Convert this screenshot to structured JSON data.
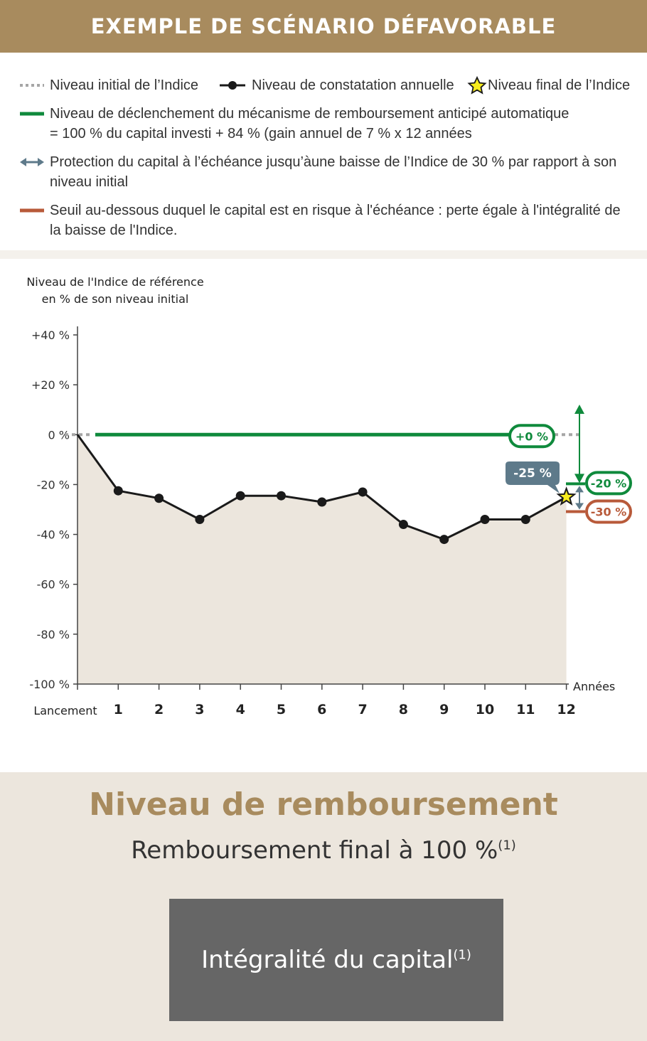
{
  "header": {
    "title": "EXEMPLE DE SCÉNARIO DÉFAVORABLE"
  },
  "legend": {
    "initial_level": "Niveau initial de l’Indice",
    "annual_level": "Niveau de constatation annuelle",
    "final_level": "Niveau final de l’Indice",
    "trigger_line1": "Niveau de déclenchement du mécanisme de remboursement anticipé automatique",
    "trigger_line2": "= 100 %  du capital investi + 84 % (gain annuel de 7 % x 12 années",
    "protection_line1": "Protection du capital à l’échéance jusqu’àune baisse de l’Indice de 30 % par rapport à son",
    "protection_line2": "niveau initial",
    "threshold_line1": "Seuil au-dessous duquel le capital est en risque à l'échéance : perte égale à l'intégralité de",
    "threshold_line2": "la baisse de l'Indice.",
    "colors": {
      "initial": "#a6a6a6",
      "annual": "#1a1a1a",
      "final_star": "#f7ec1c",
      "trigger": "#0f8a3c",
      "protection": "#5e7a8a",
      "threshold": "#b85a3a"
    }
  },
  "chart_data": {
    "type": "line",
    "ylabel_line1": "Niveau de l'Indice de référence",
    "ylabel_line2": "en % de son niveau initial",
    "xlabel": "Années",
    "x_start_label": "Lancement",
    "x": [
      0,
      1,
      2,
      3,
      4,
      5,
      6,
      7,
      8,
      9,
      10,
      11,
      12
    ],
    "x_tick_labels": [
      "1",
      "2",
      "3",
      "4",
      "5",
      "6",
      "7",
      "8",
      "9",
      "10",
      "11",
      "12"
    ],
    "y_ticks": [
      40,
      20,
      0,
      -20,
      -40,
      -60,
      -80,
      -100
    ],
    "y_tick_labels": [
      "+40 %",
      "+20 %",
      "0 %",
      "-20 %",
      "-40 %",
      "-60 %",
      "-80 %",
      "-100 %"
    ],
    "ylim": [
      -100,
      40
    ],
    "series": [
      {
        "values": [
          0,
          -22.5,
          -25.5,
          -34,
          -24.5,
          -24.5,
          -27,
          -23,
          -36,
          -42,
          -34,
          -34,
          -25
        ]
      }
    ],
    "trigger_level": 0,
    "protection_level": -30,
    "upper_marker_level": -20,
    "labels": {
      "trigger": "+0 %",
      "final": "-25 %",
      "upper": "-20 %",
      "threshold": "-30 %"
    }
  },
  "repayment": {
    "title": "Niveau de remboursement",
    "subtitle": "Remboursement final à 100 %",
    "subtitle_note": "(1)",
    "capital": "Intégralité du capital",
    "capital_note": "(1)"
  }
}
